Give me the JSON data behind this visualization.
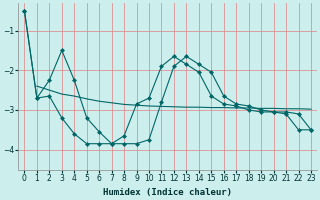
{
  "xlabel": "Humidex (Indice chaleur)",
  "background_color": "#cceeed",
  "grid_color": "#e08080",
  "line_color": "#006666",
  "xlim": [
    -0.5,
    23.5
  ],
  "ylim": [
    -4.5,
    -0.3
  ],
  "yticks": [
    -4,
    -3,
    -2,
    -1
  ],
  "xticks": [
    0,
    1,
    2,
    3,
    4,
    5,
    6,
    7,
    8,
    9,
    10,
    11,
    12,
    13,
    14,
    15,
    16,
    17,
    18,
    19,
    20,
    21,
    22,
    23
  ],
  "line1_x": [
    0,
    1,
    2,
    3,
    4,
    5,
    6,
    7,
    8,
    9,
    10,
    11,
    12,
    13,
    14,
    15,
    16,
    17,
    18,
    19,
    20,
    21,
    22,
    23
  ],
  "line1_y": [
    -0.5,
    -2.7,
    -2.25,
    -1.5,
    -2.25,
    -3.2,
    -3.55,
    -3.85,
    -3.85,
    -3.85,
    -3.75,
    -2.8,
    -1.9,
    -1.65,
    -1.85,
    -2.05,
    -2.65,
    -2.85,
    -2.9,
    -3.0,
    -3.05,
    -3.05,
    -3.1,
    -3.5
  ],
  "line2_x": [
    1,
    2,
    3,
    4,
    5,
    6,
    7,
    8,
    9,
    10,
    11,
    12,
    13,
    14,
    15,
    16,
    17,
    18,
    19,
    20,
    21,
    22,
    23
  ],
  "line2_y": [
    -2.4,
    -2.5,
    -2.6,
    -2.65,
    -2.72,
    -2.78,
    -2.82,
    -2.86,
    -2.88,
    -2.9,
    -2.91,
    -2.92,
    -2.93,
    -2.93,
    -2.94,
    -2.94,
    -2.95,
    -2.95,
    -2.96,
    -2.96,
    -2.97,
    -2.97,
    -2.98
  ],
  "line3_x": [
    0,
    1,
    2,
    3,
    4,
    5,
    6,
    7,
    8,
    9,
    10,
    11,
    12,
    13,
    14,
    15,
    16,
    17,
    18,
    19,
    20,
    21,
    22,
    23
  ],
  "line3_y": [
    -0.5,
    -2.7,
    -2.65,
    -3.2,
    -3.6,
    -3.85,
    -3.85,
    -3.85,
    -3.65,
    -2.85,
    -2.7,
    -1.9,
    -1.65,
    -1.85,
    -2.05,
    -2.65,
    -2.85,
    -2.9,
    -3.0,
    -3.05,
    -3.05,
    -3.1,
    -3.5,
    -3.5
  ]
}
